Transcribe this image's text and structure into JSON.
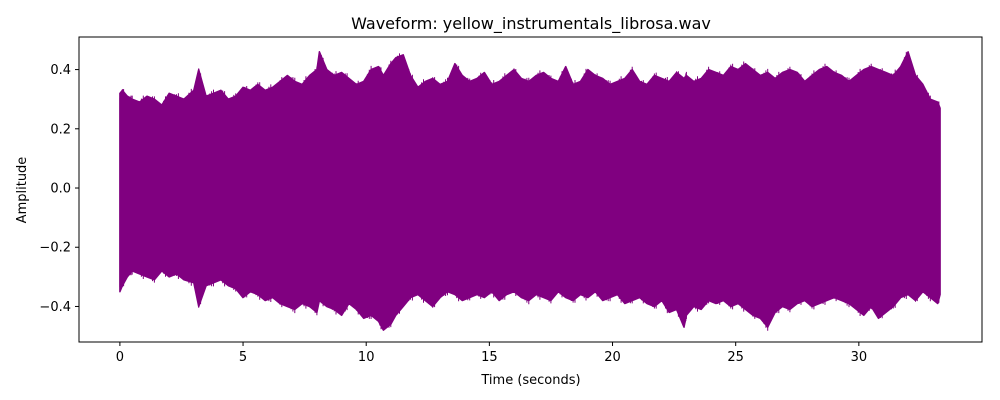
{
  "chart_data": {
    "type": "line",
    "title": "Waveform: yellow_instrumentals_librosa.wav",
    "xlabel": "Time (seconds)",
    "ylabel": "Amplitude",
    "xlim": [
      -1.66,
      35.0
    ],
    "ylim": [
      -0.52,
      0.51
    ],
    "x_ticks": [
      0,
      5,
      10,
      15,
      20,
      25,
      30
    ],
    "x_tick_labels": [
      "0",
      "5",
      "10",
      "15",
      "20",
      "25",
      "30"
    ],
    "y_ticks": [
      -0.4,
      -0.2,
      0.0,
      0.2,
      0.4
    ],
    "y_tick_labels": [
      "−0.4",
      "−0.2",
      "0.0",
      "0.2",
      "0.4"
    ],
    "grid": false,
    "legend": "none",
    "line_color": "#800080",
    "series": [
      {
        "x": [
          0.0,
          0.1,
          0.3,
          0.5,
          0.8,
          1.1,
          1.4,
          1.7,
          2.0,
          2.3,
          2.6,
          3.0,
          3.2,
          3.5,
          3.8,
          4.1,
          4.4,
          4.7,
          5.0,
          5.3,
          5.6,
          5.9,
          6.2,
          6.5,
          6.8,
          7.1,
          7.4,
          7.7,
          8.0,
          8.1,
          8.4,
          8.7,
          9.0,
          9.3,
          9.6,
          9.9,
          10.2,
          10.5,
          10.7,
          11.0,
          11.2,
          11.5,
          11.8,
          12.1,
          12.4,
          12.7,
          13.0,
          13.3,
          13.6,
          13.9,
          14.2,
          14.5,
          14.8,
          15.1,
          15.4,
          15.7,
          16.0,
          16.3,
          16.6,
          16.9,
          17.2,
          17.5,
          17.8,
          18.1,
          18.4,
          18.7,
          19.0,
          19.3,
          19.6,
          19.9,
          20.2,
          20.5,
          20.8,
          21.1,
          21.4,
          21.7,
          22.0,
          22.3,
          22.6,
          22.9,
          23.0,
          23.3,
          23.6,
          23.9,
          24.2,
          24.5,
          24.8,
          25.1,
          25.4,
          25.7,
          26.0,
          26.3,
          26.6,
          26.9,
          27.2,
          27.5,
          27.8,
          28.1,
          28.4,
          28.7,
          29.0,
          29.3,
          29.6,
          29.9,
          30.2,
          30.5,
          30.8,
          31.1,
          31.4,
          31.7,
          32.0,
          32.3,
          32.6,
          32.9,
          33.2,
          33.3
        ],
        "max": [
          0.32,
          0.33,
          0.31,
          0.3,
          0.29,
          0.31,
          0.3,
          0.28,
          0.32,
          0.31,
          0.3,
          0.33,
          0.4,
          0.31,
          0.32,
          0.33,
          0.3,
          0.31,
          0.34,
          0.33,
          0.35,
          0.33,
          0.34,
          0.36,
          0.38,
          0.36,
          0.35,
          0.38,
          0.4,
          0.46,
          0.4,
          0.38,
          0.39,
          0.37,
          0.35,
          0.36,
          0.4,
          0.41,
          0.38,
          0.42,
          0.44,
          0.45,
          0.38,
          0.34,
          0.36,
          0.37,
          0.35,
          0.36,
          0.42,
          0.38,
          0.36,
          0.37,
          0.39,
          0.35,
          0.36,
          0.38,
          0.4,
          0.37,
          0.36,
          0.38,
          0.39,
          0.37,
          0.36,
          0.41,
          0.35,
          0.36,
          0.4,
          0.38,
          0.37,
          0.35,
          0.36,
          0.37,
          0.4,
          0.36,
          0.35,
          0.38,
          0.37,
          0.36,
          0.39,
          0.37,
          0.38,
          0.36,
          0.37,
          0.4,
          0.39,
          0.38,
          0.41,
          0.4,
          0.42,
          0.4,
          0.38,
          0.39,
          0.37,
          0.39,
          0.4,
          0.39,
          0.36,
          0.38,
          0.4,
          0.41,
          0.39,
          0.38,
          0.36,
          0.38,
          0.4,
          0.41,
          0.4,
          0.39,
          0.38,
          0.41,
          0.46,
          0.38,
          0.35,
          0.3,
          0.29,
          0.27
        ],
        "min": [
          -0.35,
          -0.33,
          -0.3,
          -0.28,
          -0.29,
          -0.3,
          -0.31,
          -0.28,
          -0.3,
          -0.29,
          -0.31,
          -0.32,
          -0.4,
          -0.33,
          -0.32,
          -0.31,
          -0.33,
          -0.34,
          -0.37,
          -0.35,
          -0.36,
          -0.38,
          -0.37,
          -0.39,
          -0.4,
          -0.41,
          -0.39,
          -0.4,
          -0.42,
          -0.38,
          -0.4,
          -0.41,
          -0.43,
          -0.39,
          -0.41,
          -0.44,
          -0.43,
          -0.45,
          -0.48,
          -0.46,
          -0.43,
          -0.4,
          -0.37,
          -0.36,
          -0.38,
          -0.4,
          -0.37,
          -0.35,
          -0.36,
          -0.38,
          -0.37,
          -0.36,
          -0.37,
          -0.35,
          -0.38,
          -0.36,
          -0.35,
          -0.37,
          -0.38,
          -0.36,
          -0.37,
          -0.38,
          -0.35,
          -0.37,
          -0.38,
          -0.36,
          -0.37,
          -0.35,
          -0.38,
          -0.37,
          -0.36,
          -0.39,
          -0.38,
          -0.37,
          -0.39,
          -0.4,
          -0.38,
          -0.42,
          -0.41,
          -0.47,
          -0.43,
          -0.4,
          -0.41,
          -0.38,
          -0.39,
          -0.38,
          -0.4,
          -0.39,
          -0.41,
          -0.43,
          -0.44,
          -0.47,
          -0.42,
          -0.4,
          -0.41,
          -0.39,
          -0.38,
          -0.4,
          -0.39,
          -0.38,
          -0.37,
          -0.38,
          -0.39,
          -0.41,
          -0.43,
          -0.4,
          -0.44,
          -0.42,
          -0.4,
          -0.37,
          -0.36,
          -0.38,
          -0.35,
          -0.37,
          -0.39,
          -0.36
        ]
      }
    ]
  }
}
